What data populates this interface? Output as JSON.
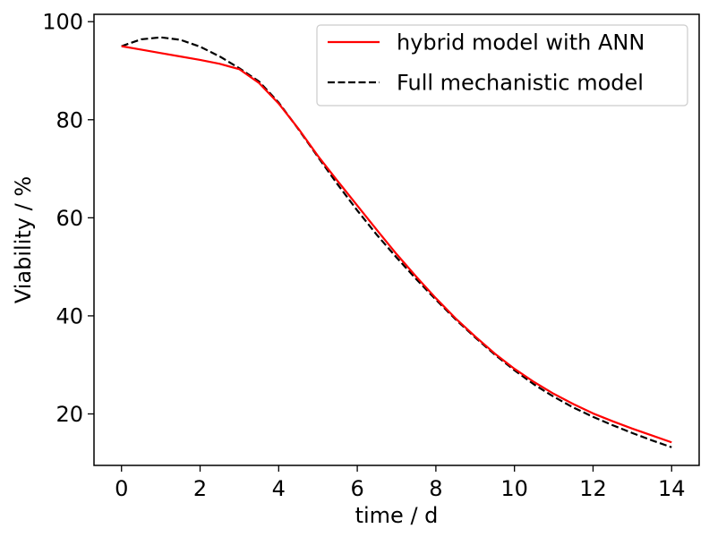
{
  "chart_data": {
    "type": "line",
    "xlabel": "time / d",
    "ylabel": "Viability / %",
    "xlim": [
      -0.7,
      14.7
    ],
    "ylim": [
      9.5,
      101.5
    ],
    "xticks": [
      0,
      2,
      4,
      6,
      8,
      10,
      12,
      14
    ],
    "yticks": [
      20,
      40,
      60,
      80,
      100
    ],
    "grid": false,
    "legend_position": "top-right",
    "series": [
      {
        "name": "hybrid model with ANN",
        "color": "#ff0000",
        "style": "solid",
        "x": [
          0,
          0.5,
          1,
          1.5,
          2,
          2.5,
          3,
          3.5,
          4,
          4.5,
          5,
          5.5,
          6,
          6.5,
          7,
          7.5,
          8,
          8.5,
          9,
          9.5,
          10,
          10.5,
          11,
          11.5,
          12,
          12.5,
          13,
          13.5,
          14
        ],
        "y": [
          95.0,
          94.3,
          93.6,
          92.9,
          92.2,
          91.4,
          90.3,
          87.5,
          83.3,
          78.2,
          72.6,
          67.5,
          62.5,
          57.5,
          52.6,
          48.0,
          43.6,
          39.5,
          35.8,
          32.3,
          29.2,
          26.5,
          24.1,
          22.0,
          20.1,
          18.5,
          17.0,
          15.6,
          14.2
        ]
      },
      {
        "name": "Full mechanistic model",
        "color": "#000000",
        "style": "dashed",
        "x": [
          0,
          0.5,
          1,
          1.5,
          2,
          2.5,
          3,
          3.5,
          4,
          4.5,
          5,
          5.5,
          6,
          6.5,
          7,
          7.5,
          8,
          8.5,
          9,
          9.5,
          10,
          10.5,
          11,
          11.5,
          12,
          12.5,
          13,
          13.5,
          14
        ],
        "y": [
          95.0,
          96.4,
          96.8,
          96.3,
          94.9,
          92.9,
          90.5,
          87.8,
          83.5,
          78.1,
          72.4,
          66.8,
          61.5,
          56.5,
          51.9,
          47.5,
          43.3,
          39.3,
          35.6,
          32.1,
          28.9,
          26.0,
          23.5,
          21.3,
          19.4,
          17.7,
          16.1,
          14.6,
          13.2
        ]
      }
    ]
  }
}
